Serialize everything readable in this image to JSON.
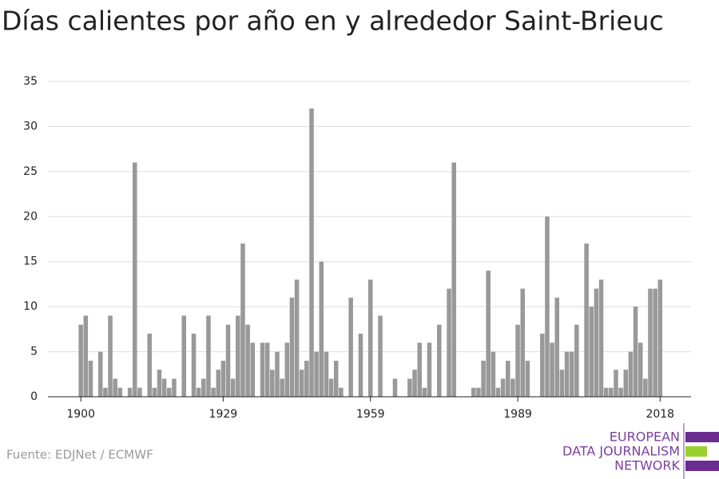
{
  "chart_data": {
    "type": "bar",
    "title": "Días calientes por año en y alrededor Saint-Brieuc",
    "source": "Fuente: EDJNet / ECMWF",
    "logo": [
      "EUROPEAN",
      "DATA JOURNALISM",
      "NETWORK"
    ],
    "color": "#999999",
    "x": [
      1900,
      1901,
      1902,
      1903,
      1904,
      1905,
      1906,
      1907,
      1908,
      1909,
      1910,
      1911,
      1912,
      1913,
      1914,
      1915,
      1916,
      1917,
      1918,
      1919,
      1920,
      1921,
      1922,
      1923,
      1924,
      1925,
      1926,
      1927,
      1928,
      1929,
      1930,
      1931,
      1932,
      1933,
      1934,
      1935,
      1936,
      1937,
      1938,
      1939,
      1940,
      1941,
      1942,
      1943,
      1944,
      1945,
      1946,
      1947,
      1948,
      1949,
      1950,
      1951,
      1952,
      1953,
      1954,
      1955,
      1956,
      1957,
      1958,
      1959,
      1960,
      1961,
      1962,
      1963,
      1964,
      1965,
      1966,
      1967,
      1968,
      1969,
      1970,
      1971,
      1972,
      1973,
      1974,
      1975,
      1976,
      1977,
      1978,
      1979,
      1980,
      1981,
      1982,
      1983,
      1984,
      1985,
      1986,
      1987,
      1988,
      1989,
      1990,
      1991,
      1992,
      1993,
      1994,
      1995,
      1996,
      1997,
      1998,
      1999,
      2000,
      2001,
      2002,
      2003,
      2004,
      2005,
      2006,
      2007,
      2008,
      2009,
      2010,
      2011,
      2012,
      2013,
      2014,
      2015,
      2016,
      2017,
      2018
    ],
    "values": [
      8,
      9,
      4,
      0,
      5,
      1,
      9,
      2,
      1,
      0,
      1,
      26,
      1,
      0,
      7,
      1,
      3,
      2,
      1,
      2,
      0,
      9,
      0,
      7,
      1,
      2,
      9,
      1,
      3,
      4,
      8,
      2,
      9,
      17,
      8,
      6,
      0,
      6,
      6,
      3,
      5,
      2,
      6,
      11,
      13,
      3,
      4,
      32,
      5,
      15,
      5,
      2,
      4,
      1,
      0,
      11,
      0,
      7,
      0,
      13,
      0,
      9,
      0,
      0,
      2,
      0,
      0,
      2,
      3,
      6,
      1,
      6,
      0,
      8,
      0,
      12,
      26,
      0,
      0,
      0,
      1,
      1,
      4,
      14,
      5,
      1,
      2,
      4,
      2,
      8,
      12,
      4,
      0,
      0,
      7,
      20,
      6,
      11,
      3,
      5,
      5,
      8,
      0,
      17,
      10,
      12,
      13,
      1,
      1,
      3,
      1,
      3,
      5,
      10,
      6,
      2,
      12,
      12,
      13
    ],
    "xlim": [
      1893.3,
      2024.3
    ],
    "xticks": [
      1900,
      1929,
      1959,
      1989,
      2018
    ],
    "ylim": [
      0,
      35
    ],
    "yticks": [
      0,
      5,
      10,
      15,
      20,
      25,
      30,
      35
    ],
    "grid": true
  }
}
